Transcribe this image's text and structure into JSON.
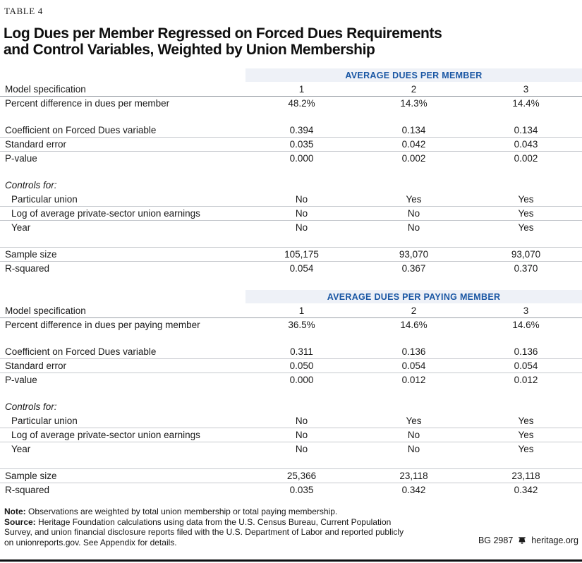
{
  "table_tag": "TABLE 4",
  "title": {
    "line1": "Log Dues per Member Regressed on Forced Dues Requirements",
    "line2": "and Control Variables, Weighted by Union Membership"
  },
  "sections": [
    {
      "band": "AVERAGE DUES PER MEMBER",
      "rows": [
        {
          "label": "Model specification",
          "values": [
            "1",
            "2",
            "3"
          ]
        },
        {
          "label": "Percent difference in dues per member",
          "values": [
            "48.2%",
            "14.3%",
            "14.4%"
          ],
          "top_border": true,
          "strong": true
        },
        {
          "spacer": true
        },
        {
          "label": "Coefficient on Forced Dues variable",
          "values": [
            "0.394",
            "0.134",
            "0.134"
          ]
        },
        {
          "label": "Standard error",
          "values": [
            "0.035",
            "0.042",
            "0.043"
          ],
          "top_border": true
        },
        {
          "label": "P-value",
          "values": [
            "0.000",
            "0.002",
            "0.002"
          ],
          "top_border": true
        },
        {
          "spacer": true
        },
        {
          "label": "Controls for:",
          "values": [
            "",
            "",
            ""
          ],
          "italic": true
        },
        {
          "label": "Particular union",
          "values": [
            "No",
            "Yes",
            "Yes"
          ],
          "indent": true
        },
        {
          "label": "Log of average private-sector union earnings",
          "values": [
            "No",
            "No",
            "Yes"
          ],
          "indent": true,
          "top_border": true
        },
        {
          "label": "Year",
          "values": [
            "No",
            "No",
            "Yes"
          ],
          "indent": true,
          "top_border": true
        },
        {
          "spacer": true
        },
        {
          "label": "Sample size",
          "values": [
            "105,175",
            "93,070",
            "93,070"
          ],
          "top_border": true
        },
        {
          "label": "R-squared",
          "values": [
            "0.054",
            "0.367",
            "0.370"
          ],
          "top_border": true
        }
      ]
    },
    {
      "band": "AVERAGE DUES PER PAYING MEMBER",
      "rows": [
        {
          "label": "Model specification",
          "values": [
            "1",
            "2",
            "3"
          ]
        },
        {
          "label": "Percent difference in dues per paying member",
          "values": [
            "36.5%",
            "14.6%",
            "14.6%"
          ],
          "top_border": true,
          "strong": true
        },
        {
          "spacer": true
        },
        {
          "label": "Coefficient on Forced Dues variable",
          "values": [
            "0.311",
            "0.136",
            "0.136"
          ]
        },
        {
          "label": "Standard error",
          "values": [
            "0.050",
            "0.054",
            "0.054"
          ],
          "top_border": true
        },
        {
          "label": "P-value",
          "values": [
            "0.000",
            "0.012",
            "0.012"
          ],
          "top_border": true
        },
        {
          "spacer": true
        },
        {
          "label": "Controls for:",
          "values": [
            "",
            "",
            ""
          ],
          "italic": true
        },
        {
          "label": "Particular union",
          "values": [
            "No",
            "Yes",
            "Yes"
          ],
          "indent": true
        },
        {
          "label": "Log of average private-sector union earnings",
          "values": [
            "No",
            "No",
            "Yes"
          ],
          "indent": true,
          "top_border": true
        },
        {
          "label": "Year",
          "values": [
            "No",
            "No",
            "Yes"
          ],
          "indent": true,
          "top_border": true
        },
        {
          "spacer": true
        },
        {
          "label": "Sample size",
          "values": [
            "25,366",
            "23,118",
            "23,118"
          ],
          "top_border": true
        },
        {
          "label": "R-squared",
          "values": [
            "0.035",
            "0.342",
            "0.342"
          ],
          "top_border": true
        }
      ]
    }
  ],
  "footer": {
    "note_label": "Note:",
    "note_text": "Observations are weighted by total union membership or total paying membership.",
    "source_label": "Source:",
    "source_text": "Heritage Foundation calculations using data from the U.S. Census Bureau, Current Population Survey, and union financial disclosure reports filed with the U.S. Department of Labor and reported publicly on unionreports.gov. See Appendix for details.",
    "credit_id": "BG 2987",
    "credit_icon": "heritage-bell-icon",
    "credit_site": "heritage.org"
  },
  "colors": {
    "band_bg": "#eef1f7",
    "band_text": "#1a57a4",
    "row_rule": "#c6c9ce",
    "row_rule_strong": "#9ba1a8",
    "bottom_bar": "#0d0f12"
  }
}
